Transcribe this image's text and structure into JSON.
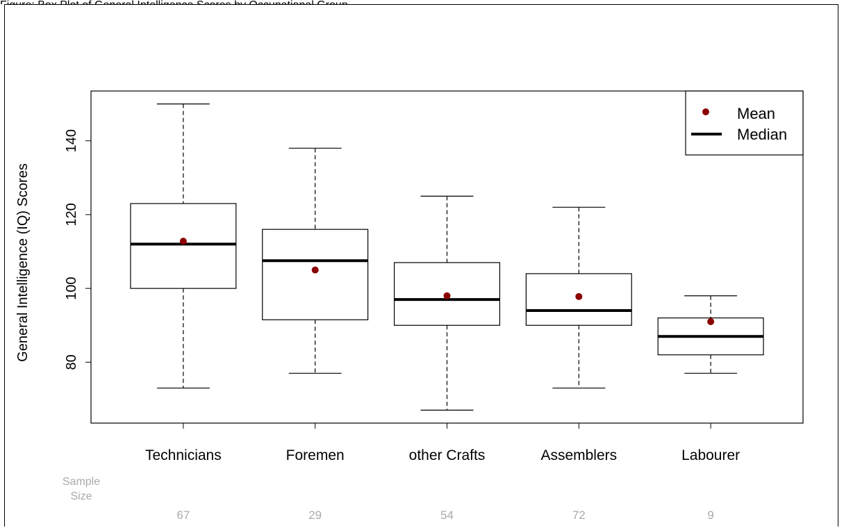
{
  "caption": "Figure: Box Plot of General Intelligence Scores by Occupational Group",
  "chart_data": {
    "type": "boxplot",
    "title": "",
    "xlabel": "",
    "ylabel": "General Intelligence (IQ) Scores",
    "ylim": [
      63.5,
      153.5
    ],
    "yticks": [
      80,
      100,
      120,
      140
    ],
    "grid": false,
    "legend_position": "top-right",
    "legend": [
      {
        "label": "Mean",
        "marker": "point",
        "color": "#8b0000"
      },
      {
        "label": "Median",
        "marker": "line",
        "color": "#000000"
      }
    ],
    "categories": [
      "Technicians",
      "Foremen",
      "other Crafts",
      "Assemblers",
      "Labourer"
    ],
    "boxes": [
      {
        "min": 73,
        "q1": 100,
        "median": 112,
        "q3": 123,
        "max": 150,
        "mean": 112.8
      },
      {
        "min": 77,
        "q1": 91.5,
        "median": 107.5,
        "q3": 116,
        "max": 138,
        "mean": 105
      },
      {
        "min": 67,
        "q1": 90,
        "median": 97,
        "q3": 107,
        "max": 125,
        "mean": 98
      },
      {
        "min": 73,
        "q1": 90,
        "median": 94,
        "q3": 104,
        "max": 122,
        "mean": 97.8
      },
      {
        "min": 77,
        "q1": 82,
        "median": 87,
        "q3": 92,
        "max": 98,
        "mean": 91
      }
    ],
    "sample_size_label": "Sample Size",
    "sample_sizes": [
      67,
      29,
      54,
      72,
      9
    ],
    "colors": {
      "mean": "#8b0000",
      "median": "#000000",
      "sample_text": "#aaaaaa"
    }
  }
}
